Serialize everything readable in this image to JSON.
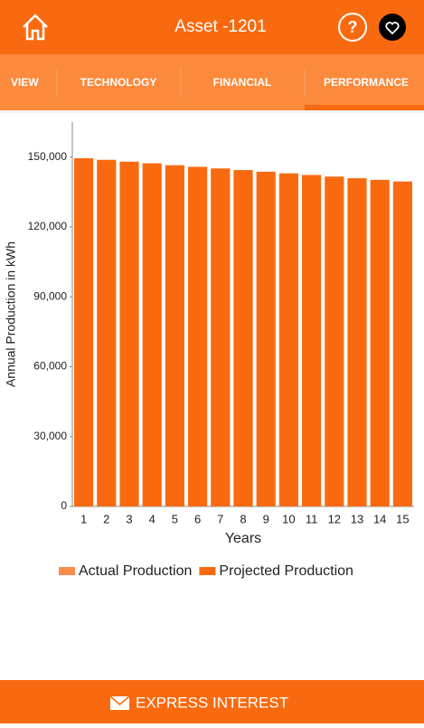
{
  "header": {
    "title": "Asset -1201",
    "help": "?"
  },
  "tabs": [
    "VIEW",
    "TECHNOLOGY",
    "FINANCIAL",
    "PERFORMANCE"
  ],
  "active_tab": 3,
  "chart_data": {
    "type": "bar",
    "categories": [
      "1",
      "2",
      "3",
      "4",
      "5",
      "6",
      "7",
      "8",
      "9",
      "10",
      "11",
      "12",
      "13",
      "14",
      "15"
    ],
    "series": [
      {
        "name": "Actual Production",
        "color": "#f98c4a",
        "values": [
          null,
          null,
          null,
          null,
          null,
          null,
          null,
          null,
          null,
          null,
          null,
          null,
          null,
          null,
          null
        ]
      },
      {
        "name": "Projected Production",
        "color": "#f96a10",
        "values": [
          149500,
          148800,
          148000,
          147300,
          146500,
          145800,
          145100,
          144400,
          143700,
          143000,
          142300,
          141600,
          140900,
          140200,
          139500
        ]
      }
    ],
    "ylim": [
      0,
      165000
    ],
    "yticks": [
      0,
      {
        "value": 30000,
        "label": "30,000"
      },
      {
        "value": 60000,
        "label": "60,000"
      },
      {
        "value": 90000,
        "label": "90,000"
      },
      {
        "value": 120000,
        "label": "120,000"
      },
      {
        "value": 150000,
        "label": "150,000"
      }
    ],
    "y_label": "Annual Production in kWh",
    "x_label": "Years",
    "grid": false
  },
  "footer": {
    "button": "EXPRESS INTEREST"
  }
}
